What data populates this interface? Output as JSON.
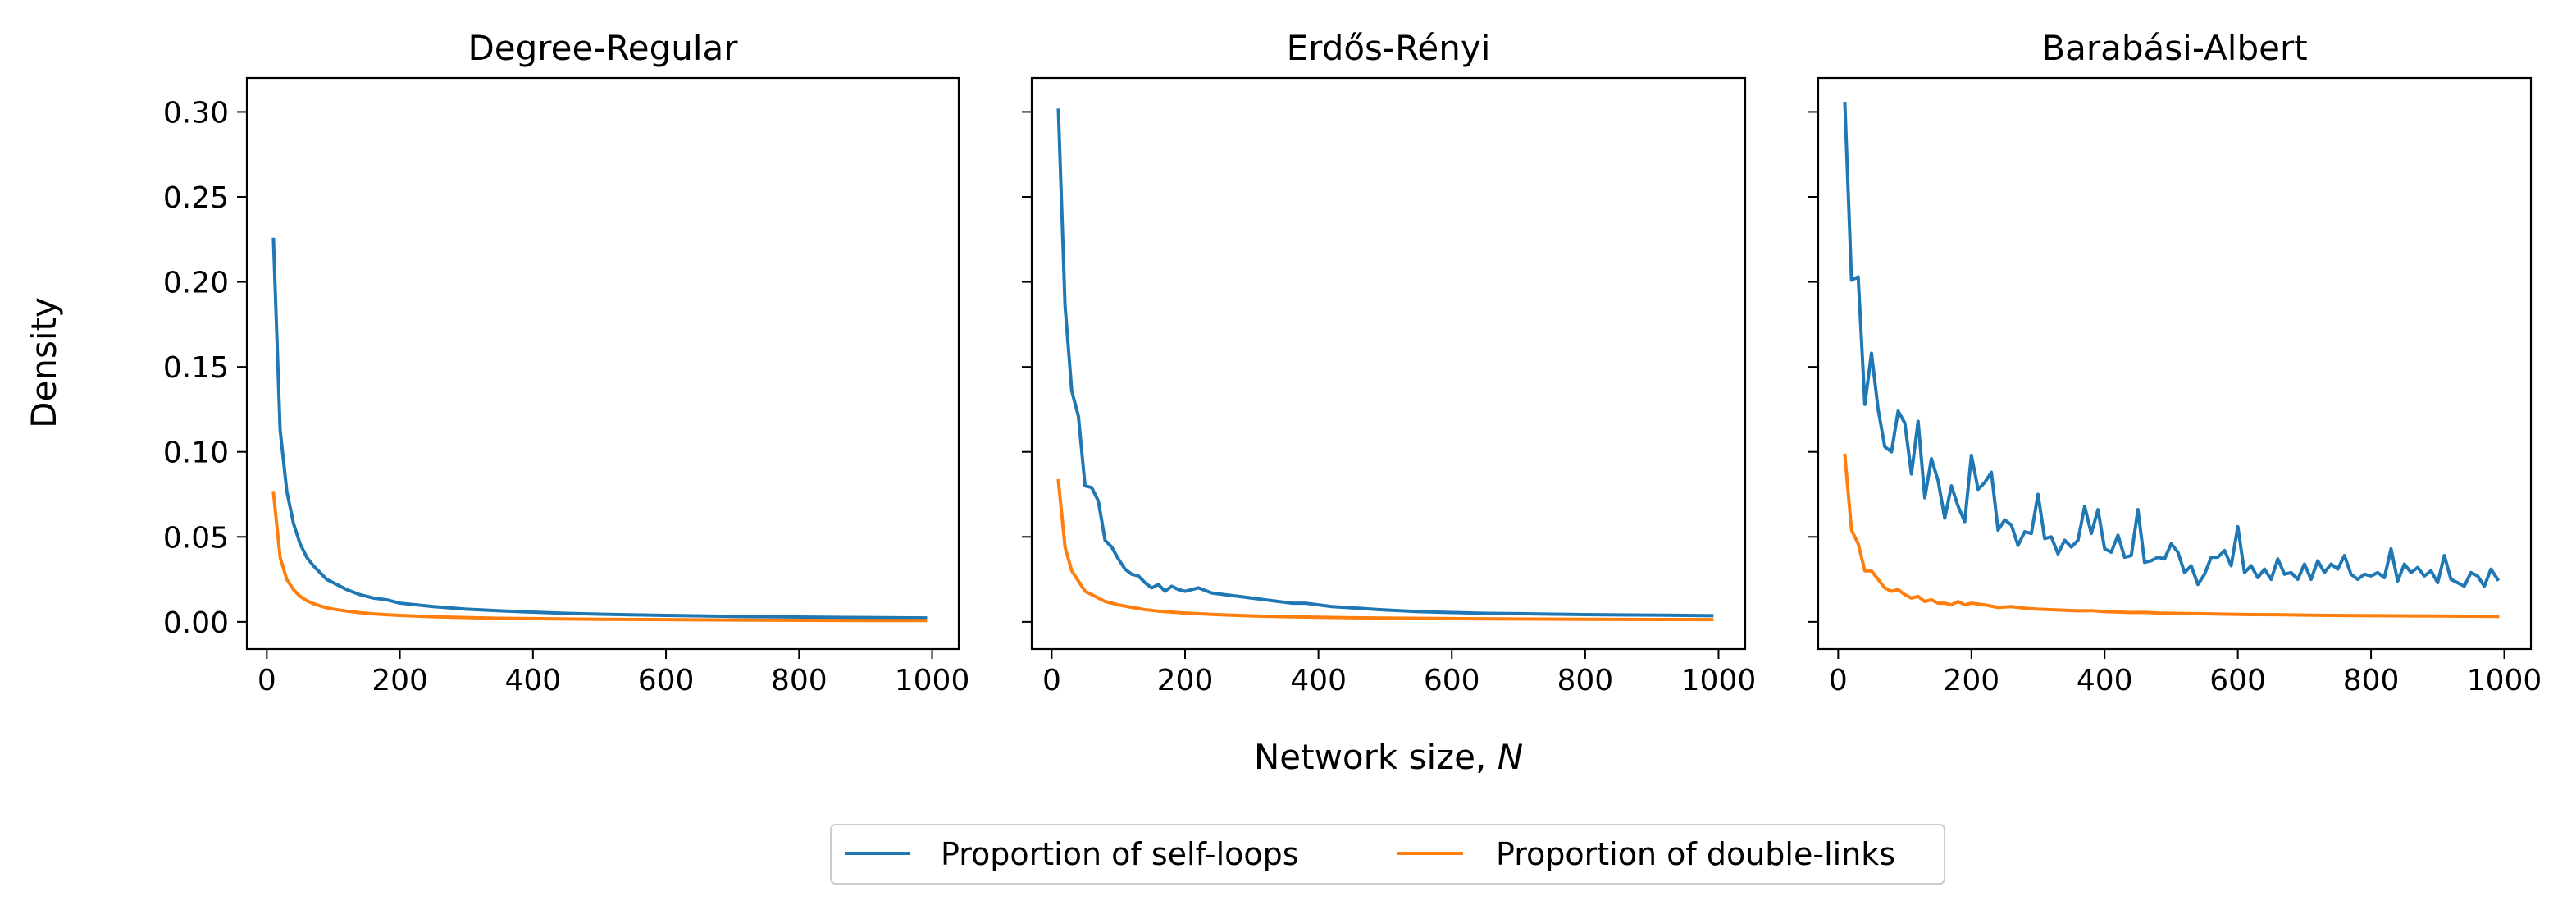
{
  "figure": {
    "ylabel": "Density",
    "xlabel_main": "Network size, ",
    "xlabel_var": "N"
  },
  "legend": {
    "placement": "bottom-center",
    "entries": [
      {
        "label": "Proportion of self-loops",
        "color": "#1f77b4"
      },
      {
        "label": "Proportion of double-links",
        "color": "#ff7f0e"
      }
    ]
  },
  "chart_data": [
    {
      "type": "line",
      "title": "Degree-Regular",
      "xlabel": "Network size, N",
      "ylabel": "Density",
      "xlim": [
        -30,
        1040
      ],
      "ylim": [
        -0.016,
        0.32
      ],
      "xticks": [
        0,
        200,
        400,
        600,
        800,
        1000
      ],
      "yticks": [
        0.0,
        0.05,
        0.1,
        0.15,
        0.2,
        0.25,
        0.3
      ],
      "ytick_labels": [
        "0.00",
        "0.05",
        "0.10",
        "0.15",
        "0.20",
        "0.25",
        "0.30"
      ],
      "grid": false,
      "series": [
        {
          "name": "Proportion of self-loops",
          "color": "#1f77b4",
          "x": [
            10,
            20,
            30,
            40,
            50,
            60,
            70,
            80,
            90,
            100,
            120,
            140,
            160,
            180,
            200,
            250,
            300,
            350,
            400,
            450,
            500,
            600,
            700,
            800,
            900,
            990
          ],
          "y": [
            0.225,
            0.113,
            0.077,
            0.058,
            0.046,
            0.038,
            0.033,
            0.029,
            0.025,
            0.023,
            0.019,
            0.016,
            0.014,
            0.013,
            0.011,
            0.009,
            0.0075,
            0.0065,
            0.0057,
            0.005,
            0.0045,
            0.0038,
            0.0032,
            0.0028,
            0.0025,
            0.0023
          ]
        },
        {
          "name": "Proportion of double-links",
          "color": "#ff7f0e",
          "x": [
            10,
            20,
            30,
            40,
            50,
            60,
            70,
            80,
            90,
            100,
            120,
            140,
            160,
            180,
            200,
            250,
            300,
            350,
            400,
            450,
            500,
            600,
            700,
            800,
            900,
            990
          ],
          "y": [
            0.076,
            0.038,
            0.025,
            0.019,
            0.015,
            0.0125,
            0.0107,
            0.0094,
            0.0083,
            0.0075,
            0.0063,
            0.0054,
            0.0047,
            0.0042,
            0.0038,
            0.003,
            0.0025,
            0.0021,
            0.0019,
            0.0017,
            0.0015,
            0.0013,
            0.0011,
            0.0009,
            0.0008,
            0.0008
          ]
        }
      ]
    },
    {
      "type": "line",
      "title": "Erdős-Rényi",
      "xlabel": "Network size, N",
      "ylabel": "Density",
      "xlim": [
        -30,
        1040
      ],
      "ylim": [
        -0.016,
        0.32
      ],
      "xticks": [
        0,
        200,
        400,
        600,
        800,
        1000
      ],
      "yticks": [
        0.0,
        0.05,
        0.1,
        0.15,
        0.2,
        0.25,
        0.3
      ],
      "ytick_labels": [
        "",
        "",
        "",
        "",
        "",
        "",
        ""
      ],
      "grid": false,
      "series": [
        {
          "name": "Proportion of self-loops",
          "color": "#1f77b4",
          "x": [
            10,
            20,
            30,
            40,
            50,
            60,
            70,
            80,
            90,
            100,
            110,
            120,
            130,
            140,
            150,
            160,
            170,
            180,
            190,
            200,
            210,
            220,
            240,
            260,
            280,
            300,
            320,
            340,
            360,
            380,
            400,
            420,
            440,
            460,
            480,
            500,
            550,
            600,
            650,
            700,
            750,
            800,
            850,
            900,
            950,
            990
          ],
          "y": [
            0.301,
            0.186,
            0.136,
            0.121,
            0.08,
            0.079,
            0.071,
            0.048,
            0.044,
            0.037,
            0.031,
            0.028,
            0.027,
            0.023,
            0.02,
            0.022,
            0.018,
            0.021,
            0.019,
            0.018,
            0.019,
            0.02,
            0.017,
            0.016,
            0.015,
            0.014,
            0.013,
            0.012,
            0.011,
            0.011,
            0.01,
            0.009,
            0.0085,
            0.008,
            0.0075,
            0.007,
            0.006,
            0.0055,
            0.005,
            0.0048,
            0.0045,
            0.0043,
            0.0041,
            0.004,
            0.0038,
            0.0036
          ]
        },
        {
          "name": "Proportion of double-links",
          "color": "#ff7f0e",
          "x": [
            10,
            20,
            30,
            40,
            50,
            60,
            70,
            80,
            90,
            100,
            120,
            140,
            160,
            180,
            200,
            250,
            300,
            350,
            400,
            450,
            500,
            600,
            700,
            800,
            900,
            990
          ],
          "y": [
            0.083,
            0.044,
            0.03,
            0.024,
            0.018,
            0.016,
            0.014,
            0.012,
            0.011,
            0.01,
            0.0085,
            0.0072,
            0.0063,
            0.0057,
            0.0052,
            0.0042,
            0.0035,
            0.003,
            0.0027,
            0.0024,
            0.0022,
            0.0019,
            0.0017,
            0.0015,
            0.0014,
            0.0013
          ]
        }
      ]
    },
    {
      "type": "line",
      "title": "Barabási-Albert",
      "xlabel": "Network size, N",
      "ylabel": "Density",
      "xlim": [
        -30,
        1040
      ],
      "ylim": [
        -0.016,
        0.32
      ],
      "xticks": [
        0,
        200,
        400,
        600,
        800,
        1000
      ],
      "yticks": [
        0.0,
        0.05,
        0.1,
        0.15,
        0.2,
        0.25,
        0.3
      ],
      "ytick_labels": [
        "",
        "",
        "",
        "",
        "",
        "",
        ""
      ],
      "grid": false,
      "series": [
        {
          "name": "Proportion of self-loops",
          "color": "#1f77b4",
          "x": [
            10,
            20,
            30,
            40,
            50,
            60,
            70,
            80,
            90,
            100,
            110,
            120,
            130,
            140,
            150,
            160,
            170,
            180,
            190,
            200,
            210,
            220,
            230,
            240,
            250,
            260,
            270,
            280,
            290,
            300,
            310,
            320,
            330,
            340,
            350,
            360,
            370,
            380,
            390,
            400,
            410,
            420,
            430,
            440,
            450,
            460,
            470,
            480,
            490,
            500,
            510,
            520,
            530,
            540,
            550,
            560,
            570,
            580,
            590,
            600,
            610,
            620,
            630,
            640,
            650,
            660,
            670,
            680,
            690,
            700,
            710,
            720,
            730,
            740,
            750,
            760,
            770,
            780,
            790,
            800,
            810,
            820,
            830,
            840,
            850,
            860,
            870,
            880,
            890,
            900,
            910,
            920,
            930,
            940,
            950,
            960,
            970,
            980,
            990
          ],
          "y": [
            0.305,
            0.201,
            0.203,
            0.128,
            0.158,
            0.125,
            0.103,
            0.1,
            0.124,
            0.117,
            0.087,
            0.118,
            0.073,
            0.096,
            0.083,
            0.061,
            0.08,
            0.068,
            0.059,
            0.098,
            0.078,
            0.082,
            0.088,
            0.054,
            0.06,
            0.057,
            0.045,
            0.053,
            0.052,
            0.075,
            0.049,
            0.05,
            0.04,
            0.048,
            0.044,
            0.048,
            0.068,
            0.052,
            0.066,
            0.043,
            0.041,
            0.051,
            0.038,
            0.039,
            0.066,
            0.035,
            0.036,
            0.038,
            0.037,
            0.046,
            0.041,
            0.029,
            0.033,
            0.022,
            0.028,
            0.038,
            0.038,
            0.042,
            0.033,
            0.056,
            0.029,
            0.033,
            0.026,
            0.031,
            0.025,
            0.037,
            0.028,
            0.029,
            0.025,
            0.034,
            0.025,
            0.036,
            0.029,
            0.034,
            0.031,
            0.039,
            0.028,
            0.025,
            0.028,
            0.027,
            0.029,
            0.026,
            0.043,
            0.024,
            0.034,
            0.029,
            0.032,
            0.027,
            0.03,
            0.023,
            0.039,
            0.025,
            0.023,
            0.021,
            0.029,
            0.027,
            0.021,
            0.031,
            0.025
          ]
        },
        {
          "name": "Proportion of double-links",
          "color": "#ff7f0e",
          "x": [
            10,
            20,
            30,
            40,
            50,
            60,
            70,
            80,
            90,
            100,
            110,
            120,
            130,
            140,
            150,
            160,
            170,
            180,
            190,
            200,
            220,
            240,
            260,
            280,
            300,
            320,
            340,
            360,
            380,
            400,
            420,
            440,
            460,
            480,
            500,
            540,
            580,
            620,
            660,
            700,
            740,
            780,
            820,
            860,
            900,
            940,
            990
          ],
          "y": [
            0.098,
            0.054,
            0.046,
            0.03,
            0.03,
            0.025,
            0.02,
            0.018,
            0.019,
            0.016,
            0.014,
            0.015,
            0.012,
            0.013,
            0.011,
            0.011,
            0.01,
            0.012,
            0.01,
            0.011,
            0.01,
            0.0085,
            0.009,
            0.008,
            0.0075,
            0.0072,
            0.0068,
            0.0065,
            0.0066,
            0.006,
            0.0058,
            0.0055,
            0.0056,
            0.0052,
            0.005,
            0.0048,
            0.0045,
            0.0043,
            0.0042,
            0.004,
            0.0038,
            0.0037,
            0.0036,
            0.0035,
            0.0034,
            0.0033,
            0.0032
          ]
        }
      ]
    }
  ]
}
